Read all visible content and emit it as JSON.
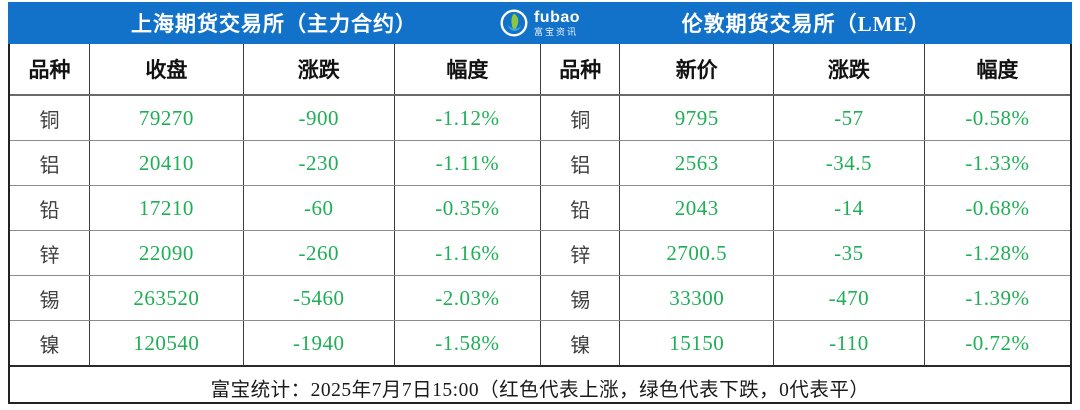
{
  "colors": {
    "header_blue": "#1271C8",
    "value_green": "#1FAF56",
    "up_red_meaning": "红色代表上涨",
    "down_green_meaning": "绿色代表下跌"
  },
  "header": {
    "left_title": "上海期货交易所（主力合约）",
    "right_title": "伦敦期货交易所（LME）",
    "logo_text": "fubao",
    "logo_subtext": "富宝资讯"
  },
  "tables": [
    {
      "title": "上海期货交易所（主力合约）",
      "columns": [
        "品种",
        "收盘",
        "涨跌",
        "幅度"
      ],
      "rows": [
        [
          "铜",
          "79270",
          "-900",
          "-1.12%"
        ],
        [
          "铝",
          "20410",
          "-230",
          "-1.11%"
        ],
        [
          "铅",
          "17210",
          "-60",
          "-0.35%"
        ],
        [
          "锌",
          "22090",
          "-260",
          "-1.16%"
        ],
        [
          "锡",
          "263520",
          "-5460",
          "-2.03%"
        ],
        [
          "镍",
          "120540",
          "-1940",
          "-1.58%"
        ]
      ]
    },
    {
      "title": "伦敦期货交易所（LME）",
      "columns": [
        "品种",
        "新价",
        "涨跌",
        "幅度"
      ],
      "rows": [
        [
          "铜",
          "9795",
          "-57",
          "-0.58%"
        ],
        [
          "铝",
          "2563",
          "-34.5",
          "-1.33%"
        ],
        [
          "铅",
          "2043",
          "-14",
          "-0.68%"
        ],
        [
          "锌",
          "2700.5",
          "-35",
          "-1.28%"
        ],
        [
          "锡",
          "33300",
          "-470",
          "-1.39%"
        ],
        [
          "镍",
          "15150",
          "-110",
          "-0.72%"
        ]
      ]
    }
  ],
  "footer": {
    "text": "富宝统计：2025年7月7日15:00（红色代表上涨，绿色代表下跌，0代表平）"
  },
  "chart_data": [
    {
      "type": "table",
      "title": "上海期货交易所（主力合约）",
      "columns": [
        "品种",
        "收盘",
        "涨跌",
        "幅度"
      ],
      "rows": [
        [
          "铜",
          79270,
          -900,
          "-1.12%"
        ],
        [
          "铝",
          20410,
          -230,
          "-1.11%"
        ],
        [
          "铅",
          17210,
          -60,
          "-0.35%"
        ],
        [
          "锌",
          22090,
          -260,
          "-1.16%"
        ],
        [
          "锡",
          263520,
          -5460,
          "-2.03%"
        ],
        [
          "镍",
          120540,
          -1940,
          "-1.58%"
        ]
      ]
    },
    {
      "type": "table",
      "title": "伦敦期货交易所（LME）",
      "columns": [
        "品种",
        "新价",
        "涨跌",
        "幅度"
      ],
      "rows": [
        [
          "铜",
          9795,
          -57,
          "-0.58%"
        ],
        [
          "铝",
          2563,
          -34.5,
          "-1.33%"
        ],
        [
          "铅",
          2043,
          -14,
          "-0.68%"
        ],
        [
          "锌",
          2700.5,
          -35,
          "-1.28%"
        ],
        [
          "锡",
          33300,
          -470,
          "-1.39%"
        ],
        [
          "镍",
          15150,
          -110,
          "-0.72%"
        ]
      ]
    }
  ]
}
